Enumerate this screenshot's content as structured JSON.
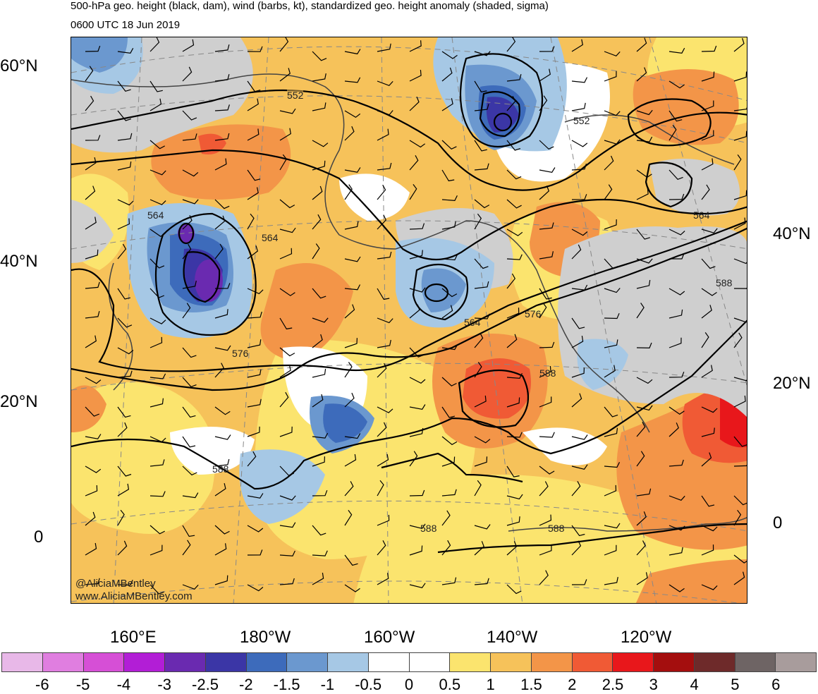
{
  "title": "500-hPa geo. height (black, dam), wind (barbs, kt), standardized geo. height anomaly (shaded, sigma)",
  "valid_time": "0600 UTC 18 Jun 2019",
  "credits": [
    "@AliciaMBentley",
    "www.AliciaMBentley.com"
  ],
  "lat_labels_left": [
    "60°N",
    "40°N",
    "20°N",
    "0"
  ],
  "lat_labels_right": [
    "40°N",
    "20°N",
    "0"
  ],
  "lon_labels_bottom": [
    "160°E",
    "180°W",
    "160°W",
    "140°W",
    "120°W"
  ],
  "contour_labels": [
    "552",
    "552",
    "564",
    "564",
    "564",
    "564",
    "576",
    "576",
    "588",
    "588",
    "588",
    "588",
    "588"
  ],
  "colorbar": {
    "labels": [
      "-6",
      "-5",
      "-4",
      "-3",
      "-2.5",
      "-2",
      "-1.5",
      "-1",
      "-0.5",
      "0",
      "0.5",
      "1",
      "1.5",
      "2",
      "2.5",
      "3",
      "4",
      "5",
      "6"
    ],
    "colors": [
      "#e8b8e8",
      "#e07ee0",
      "#d64fd6",
      "#b21ed6",
      "#6a2ab0",
      "#3b36a6",
      "#3d6bbb",
      "#6b98cf",
      "#a6c8e5",
      "#ffffff",
      "#ffffff",
      "#fbe46e",
      "#f6c25a",
      "#f39548",
      "#f05a35",
      "#e8171b",
      "#a40e0e",
      "#6e2a2a",
      "#6e6464",
      "#a89c9c"
    ]
  }
}
